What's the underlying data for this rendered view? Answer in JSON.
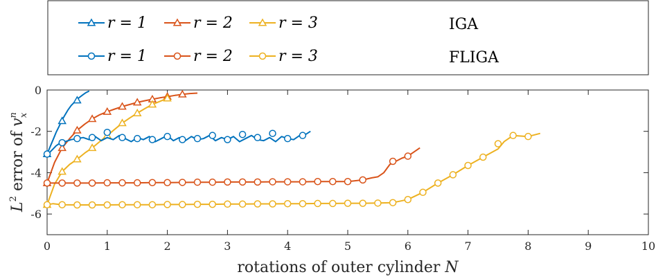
{
  "chart_data": {
    "type": "line",
    "xlabel": "rotations of outer cylinder N",
    "ylabel": "L2 error of v_x^n",
    "xlim": [
      0,
      10
    ],
    "ylim": [
      -7,
      0
    ],
    "xticks": [
      0,
      1,
      2,
      3,
      4,
      5,
      6,
      7,
      8,
      9,
      10
    ],
    "yticks": [
      0,
      -2,
      -4,
      -6
    ],
    "grid": false,
    "legend_position": "top",
    "legend_groups": [
      "IGA",
      "FLIGA"
    ],
    "colors": {
      "r1": "#0072BD",
      "r2": "#D95319",
      "r3": "#EDB120"
    },
    "series": [
      {
        "name": "r = 1",
        "group": "IGA",
        "marker": "triangle",
        "color": "#0072BD",
        "x": [
          0,
          0.05,
          0.1,
          0.15,
          0.2,
          0.25,
          0.3,
          0.35,
          0.4,
          0.45,
          0.5,
          0.55,
          0.6,
          0.65,
          0.7
        ],
        "y": [
          -3.1,
          -2.75,
          -2.4,
          -2.05,
          -1.75,
          -1.45,
          -1.2,
          -0.95,
          -0.75,
          -0.6,
          -0.45,
          -0.33,
          -0.22,
          -0.12,
          -0.05
        ],
        "markers_x": [
          0,
          0.25,
          0.5
        ],
        "markers_y": [
          -3.1,
          -1.5,
          -0.5
        ]
      },
      {
        "name": "r = 2",
        "group": "IGA",
        "marker": "triangle",
        "color": "#D95319",
        "x": [
          0,
          0.125,
          0.25,
          0.375,
          0.5,
          0.625,
          0.75,
          0.875,
          1.0,
          1.125,
          1.25,
          1.375,
          1.5,
          1.625,
          1.75,
          1.875,
          2.0,
          2.125,
          2.25,
          2.375,
          2.5
        ],
        "y": [
          -4.5,
          -3.5,
          -2.8,
          -2.35,
          -1.95,
          -1.65,
          -1.4,
          -1.2,
          -1.05,
          -0.92,
          -0.8,
          -0.7,
          -0.6,
          -0.52,
          -0.45,
          -0.38,
          -0.32,
          -0.26,
          -0.21,
          -0.17,
          -0.15
        ],
        "markers_x": [
          0,
          0.25,
          0.5,
          0.75,
          1.0,
          1.25,
          1.5,
          1.75,
          2.0,
          2.25
        ],
        "markers_y": [
          -4.5,
          -2.8,
          -1.95,
          -1.4,
          -1.05,
          -0.8,
          -0.6,
          -0.45,
          -0.32,
          -0.21
        ]
      },
      {
        "name": "r = 3",
        "group": "IGA",
        "marker": "triangle",
        "color": "#EDB120",
        "x": [
          0,
          0.125,
          0.25,
          0.375,
          0.5,
          0.625,
          0.75,
          0.875,
          1.0,
          1.125,
          1.25,
          1.375,
          1.5,
          1.625,
          1.75,
          1.875,
          2.0
        ],
        "y": [
          -5.55,
          -4.55,
          -3.95,
          -3.6,
          -3.35,
          -3.05,
          -2.8,
          -2.5,
          -2.2,
          -1.9,
          -1.6,
          -1.35,
          -1.12,
          -0.9,
          -0.7,
          -0.55,
          -0.4
        ],
        "markers_x": [
          0,
          0.25,
          0.5,
          0.75,
          1.0,
          1.25,
          1.5,
          1.75,
          2.0
        ],
        "markers_y": [
          -5.55,
          -3.95,
          -3.35,
          -2.8,
          -2.2,
          -1.6,
          -1.12,
          -0.7,
          -0.4
        ]
      },
      {
        "name": "r = 1",
        "group": "FLIGA",
        "marker": "circle",
        "color": "#0072BD",
        "x": [
          0,
          0.05,
          0.1,
          0.15,
          0.2,
          0.25,
          0.3,
          0.35,
          0.4,
          0.5,
          0.6,
          0.7,
          0.8,
          0.9,
          1.0,
          1.1,
          1.2,
          1.3,
          1.4,
          1.5,
          1.6,
          1.7,
          1.8,
          1.9,
          2.0,
          2.1,
          2.2,
          2.3,
          2.4,
          2.5,
          2.6,
          2.7,
          2.8,
          2.9,
          3.0,
          3.1,
          3.2,
          3.3,
          3.4,
          3.5,
          3.6,
          3.7,
          3.8,
          3.9,
          4.0,
          4.1,
          4.2,
          4.3,
          4.38
        ],
        "y": [
          -3.1,
          -3.0,
          -2.85,
          -2.7,
          -2.6,
          -2.55,
          -2.5,
          -2.45,
          -2.4,
          -2.35,
          -2.3,
          -2.4,
          -2.25,
          -2.45,
          -2.3,
          -2.4,
          -2.2,
          -2.35,
          -2.5,
          -2.3,
          -2.4,
          -2.25,
          -2.5,
          -2.35,
          -2.2,
          -2.45,
          -2.3,
          -2.45,
          -2.25,
          -2.4,
          -2.35,
          -2.2,
          -2.45,
          -2.3,
          -2.4,
          -2.25,
          -2.5,
          -2.35,
          -2.2,
          -2.4,
          -2.45,
          -2.3,
          -2.5,
          -2.25,
          -2.35,
          -2.4,
          -2.2,
          -2.15,
          -2.0
        ],
        "markers_x": [
          0,
          0.25,
          0.5,
          0.75,
          1.0,
          1.25,
          1.5,
          1.75,
          2.0,
          2.25,
          2.5,
          2.75,
          3.0,
          3.25,
          3.5,
          3.75,
          4.0,
          4.25
        ],
        "markers_y": [
          -3.1,
          -2.55,
          -2.35,
          -2.3,
          -2.05,
          -2.3,
          -2.35,
          -2.4,
          -2.25,
          -2.4,
          -2.35,
          -2.2,
          -2.4,
          -2.15,
          -2.3,
          -2.1,
          -2.35,
          -2.2
        ]
      },
      {
        "name": "r = 2",
        "group": "FLIGA",
        "marker": "circle",
        "color": "#D95319",
        "x": [
          0,
          0.25,
          0.5,
          0.75,
          1.0,
          1.25,
          1.5,
          1.75,
          2.0,
          2.25,
          2.5,
          2.75,
          3.0,
          3.25,
          3.5,
          3.75,
          4.0,
          4.25,
          4.5,
          4.75,
          5.0,
          5.25,
          5.4,
          5.5,
          5.6,
          5.7,
          5.8,
          5.9,
          6.0,
          6.1,
          6.2
        ],
        "y": [
          -4.5,
          -4.5,
          -4.5,
          -4.5,
          -4.49,
          -4.49,
          -4.49,
          -4.48,
          -4.48,
          -4.47,
          -4.46,
          -4.46,
          -4.45,
          -4.45,
          -4.45,
          -4.44,
          -4.44,
          -4.44,
          -4.43,
          -4.43,
          -4.43,
          -4.35,
          -4.25,
          -4.2,
          -4.0,
          -3.6,
          -3.45,
          -3.3,
          -3.2,
          -3.0,
          -2.8
        ],
        "markers_x": [
          0,
          0.25,
          0.5,
          0.75,
          1.0,
          1.25,
          1.5,
          1.75,
          2.0,
          2.25,
          2.5,
          2.75,
          3.0,
          3.25,
          3.5,
          3.75,
          4.0,
          4.25,
          4.5,
          4.75,
          5.0,
          5.25,
          5.75,
          6.0
        ],
        "markers_y": [
          -4.5,
          -4.5,
          -4.5,
          -4.5,
          -4.49,
          -4.49,
          -4.49,
          -4.48,
          -4.48,
          -4.47,
          -4.46,
          -4.46,
          -4.45,
          -4.45,
          -4.45,
          -4.44,
          -4.44,
          -4.44,
          -4.43,
          -4.43,
          -4.43,
          -4.35,
          -3.45,
          -3.2
        ]
      },
      {
        "name": "r = 3",
        "group": "FLIGA",
        "marker": "circle",
        "color": "#EDB120",
        "x": [
          0,
          0.1,
          0.25,
          0.5,
          0.75,
          1.0,
          1.25,
          1.5,
          1.75,
          2.0,
          2.25,
          2.5,
          2.75,
          3.0,
          3.25,
          3.5,
          3.75,
          4.0,
          4.25,
          4.5,
          4.75,
          5.0,
          5.25,
          5.5,
          5.75,
          6.0,
          6.25,
          6.5,
          6.75,
          7.0,
          7.25,
          7.5,
          7.6,
          7.75,
          8.0,
          8.2
        ],
        "y": [
          -5.55,
          -5.5,
          -5.55,
          -5.56,
          -5.56,
          -5.56,
          -5.55,
          -5.55,
          -5.55,
          -5.54,
          -5.54,
          -5.53,
          -5.53,
          -5.52,
          -5.52,
          -5.51,
          -5.51,
          -5.5,
          -5.5,
          -5.49,
          -5.49,
          -5.48,
          -5.48,
          -5.47,
          -5.45,
          -5.3,
          -4.95,
          -4.5,
          -4.1,
          -3.65,
          -3.25,
          -2.85,
          -2.5,
          -2.2,
          -2.25,
          -2.1
        ],
        "markers_x": [
          0,
          0.25,
          0.5,
          0.75,
          1.0,
          1.25,
          1.5,
          1.75,
          2.0,
          2.25,
          2.5,
          2.75,
          3.0,
          3.25,
          3.5,
          3.75,
          4.0,
          4.25,
          4.5,
          4.75,
          5.0,
          5.25,
          5.5,
          5.75,
          6.0,
          6.25,
          6.5,
          6.75,
          7.0,
          7.25,
          7.5,
          7.75,
          8.0
        ],
        "markers_y": [
          -5.55,
          -5.55,
          -5.56,
          -5.56,
          -5.56,
          -5.55,
          -5.55,
          -5.55,
          -5.54,
          -5.54,
          -5.53,
          -5.53,
          -5.52,
          -5.52,
          -5.51,
          -5.51,
          -5.5,
          -5.5,
          -5.49,
          -5.49,
          -5.48,
          -5.48,
          -5.47,
          -5.45,
          -5.3,
          -4.95,
          -4.5,
          -4.1,
          -3.65,
          -3.25,
          -2.6,
          -2.2,
          -2.25
        ]
      }
    ]
  }
}
